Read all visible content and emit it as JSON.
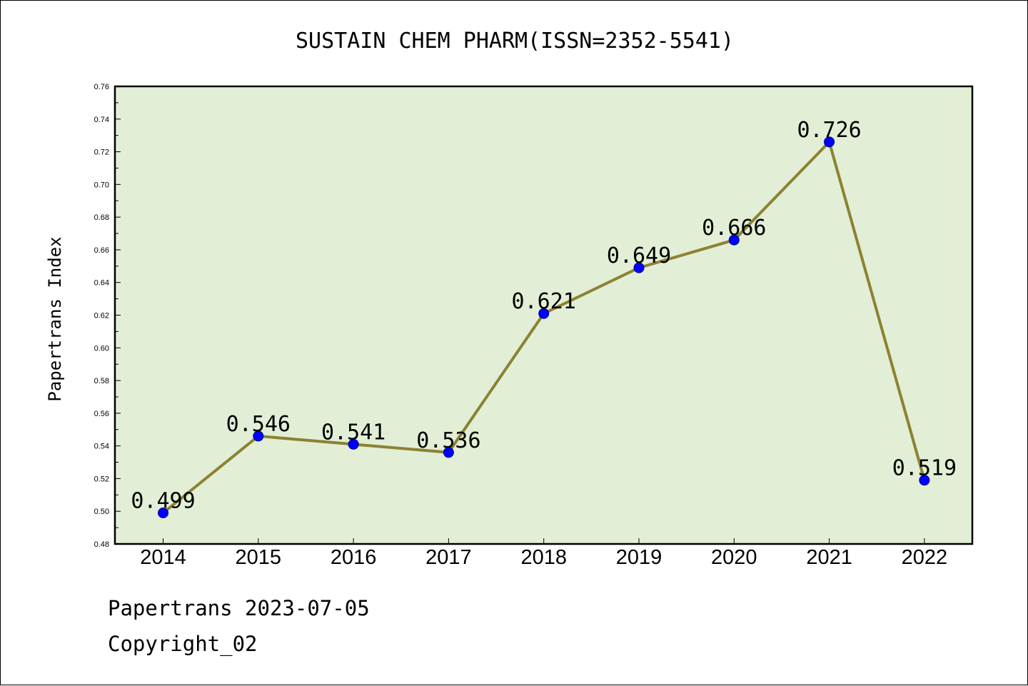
{
  "chart_data": {
    "type": "line",
    "title": "SUSTAIN CHEM PHARM(ISSN=2352-5541)",
    "xlabel": "",
    "ylabel": "Papertrans Index",
    "categories": [
      "2014",
      "2015",
      "2016",
      "2017",
      "2018",
      "2019",
      "2020",
      "2021",
      "2022"
    ],
    "values": [
      0.499,
      0.546,
      0.541,
      0.536,
      0.621,
      0.649,
      0.666,
      0.726,
      0.519
    ],
    "data_labels": [
      "0.499",
      "0.546",
      "0.541",
      "0.536",
      "0.621",
      "0.649",
      "0.666",
      "0.726",
      "0.519"
    ],
    "ylim": [
      0.48,
      0.76
    ],
    "yticks": [
      "0.48",
      "0.50",
      "0.52",
      "0.54",
      "0.56",
      "0.58",
      "0.60",
      "0.62",
      "0.64",
      "0.66",
      "0.68",
      "0.70",
      "0.72",
      "0.74",
      "0.76"
    ],
    "grid": false,
    "legend": "none",
    "colors": {
      "plot_background": "#e2efd6",
      "line": "#8c8232",
      "marker": "#0000ff",
      "marker_edge": "#000080"
    }
  },
  "footer": {
    "line1": "Papertrans 2023-07-05",
    "line2": "Copyright_02"
  }
}
